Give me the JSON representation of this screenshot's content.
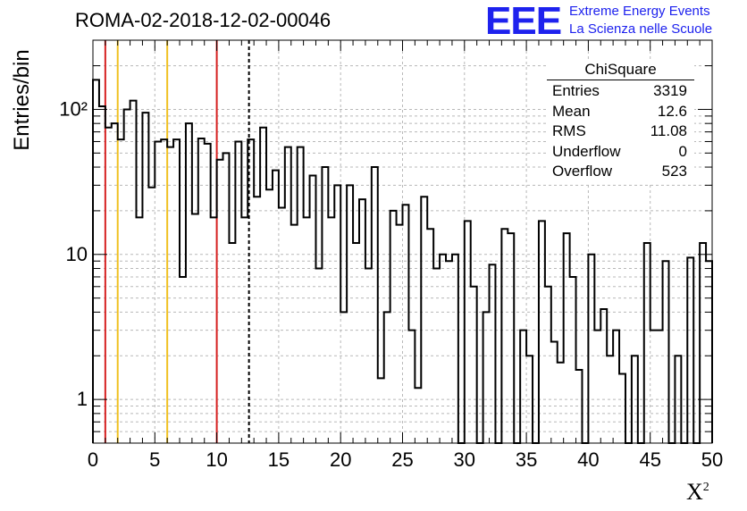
{
  "title": "ROMA-02-2018-12-02-00046",
  "logo": {
    "letters": "EEE",
    "line1": "Extreme Energy Events",
    "line2": "La Scienza nelle Scuole",
    "color": "#1e22ee"
  },
  "stats": {
    "name": "ChiSquare",
    "rows": [
      {
        "label": "Entries",
        "value": "3319"
      },
      {
        "label": "Mean",
        "value": "12.6"
      },
      {
        "label": "RMS",
        "value": "11.08"
      },
      {
        "label": "Underflow",
        "value": "0"
      },
      {
        "label": "Overflow",
        "value": "523"
      }
    ]
  },
  "chart_data": {
    "type": "bar",
    "style": "step-histogram",
    "xlabel": "X²",
    "ylabel": "Entries/bin",
    "xlim": [
      0,
      50
    ],
    "ylim": [
      0.5,
      300
    ],
    "yscale": "log",
    "grid": true,
    "x_ticks": [
      "0",
      "5",
      "10",
      "15",
      "20",
      "25",
      "30",
      "35",
      "40",
      "45",
      "50"
    ],
    "y_ticks": [
      {
        "value": 1,
        "label": "1"
      },
      {
        "value": 10,
        "label": "10"
      },
      {
        "value": 100,
        "label": "10²"
      }
    ],
    "bin_width": 0.5,
    "values": [
      160,
      105,
      75,
      80,
      62,
      100,
      115,
      18,
      95,
      29,
      60,
      62,
      55,
      62,
      7,
      80,
      19,
      63,
      58,
      18,
      45,
      50,
      12,
      60,
      18,
      62,
      25,
      75,
      28,
      38,
      21,
      55,
      16,
      55,
      18,
      35,
      8,
      40,
      18,
      30,
      4,
      30,
      12,
      24,
      8,
      40,
      1.4,
      4,
      20,
      16,
      22,
      3,
      1.2,
      25,
      15,
      8,
      10,
      9,
      10,
      0.3,
      17,
      6,
      0.3,
      4,
      8.5,
      0.3,
      15,
      14,
      0.3,
      3,
      2,
      0.3,
      17,
      6,
      2.5,
      1.8,
      14,
      7,
      1.6,
      0.3,
      10,
      3,
      4.2,
      2,
      3,
      1.5,
      0.3,
      2,
      0.3,
      12,
      3,
      3,
      9,
      0.3,
      2,
      0.3,
      9.5,
      0.3,
      12,
      9
    ],
    "reference_lines": [
      {
        "x": 1,
        "color": "#d62020",
        "style": "solid"
      },
      {
        "x": 2,
        "color": "#f0c020",
        "style": "solid"
      },
      {
        "x": 6,
        "color": "#f0c020",
        "style": "solid"
      },
      {
        "x": 10,
        "color": "#d62020",
        "style": "solid"
      },
      {
        "x": 12.6,
        "color": "#000000",
        "style": "dashed"
      }
    ]
  }
}
